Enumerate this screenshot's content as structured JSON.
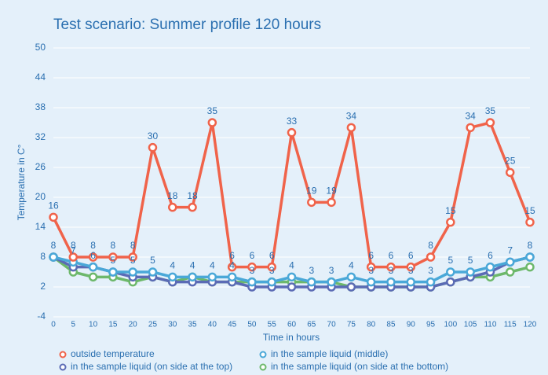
{
  "chart_data": {
    "type": "line",
    "title": "Test scenario: Summer profile 120 hours",
    "xlabel": "Time in hours",
    "ylabel": "Temperature in C°",
    "x": [
      0,
      5,
      10,
      15,
      20,
      25,
      30,
      35,
      40,
      45,
      50,
      55,
      60,
      65,
      70,
      75,
      80,
      85,
      90,
      95,
      100,
      105,
      110,
      115,
      120
    ],
    "series": [
      {
        "name": "outside temperature",
        "color": "#f0634a",
        "values": [
          16,
          8,
          8,
          8,
          8,
          30,
          18,
          18,
          35,
          6,
          6,
          6,
          33,
          19,
          19,
          34,
          6,
          6,
          6,
          8,
          15,
          34,
          35,
          25,
          15
        ]
      },
      {
        "name": "in the sample liquid (middle)",
        "color": "#4aa8d8",
        "values": [
          8,
          7,
          6,
          5,
          5,
          5,
          4,
          4,
          4,
          4,
          3,
          3,
          4,
          3,
          3,
          4,
          3,
          3,
          3,
          3,
          5,
          5,
          6,
          7,
          8
        ]
      },
      {
        "name": "in the sample liquid (on side at the top)",
        "color": "#5b6bb5",
        "values": [
          8,
          6,
          6,
          5,
          4,
          4,
          3,
          3,
          3,
          3,
          2,
          2,
          2,
          2,
          2,
          2,
          2,
          2,
          2,
          2,
          3,
          4,
          5,
          7,
          8
        ]
      },
      {
        "name": "in the sample liquid (on side at the bottom)",
        "color": "#6db86b",
        "values": [
          8,
          5,
          4,
          4,
          3,
          4,
          3,
          4,
          3,
          3,
          3,
          3,
          3,
          3,
          3,
          2,
          2,
          2,
          2,
          2,
          3,
          4,
          4,
          5,
          6
        ]
      }
    ],
    "xlim": [
      0,
      120
    ],
    "xticks": [
      0,
      5,
      10,
      15,
      20,
      25,
      30,
      35,
      40,
      45,
      50,
      55,
      60,
      65,
      70,
      75,
      80,
      85,
      90,
      95,
      100,
      105,
      110,
      115,
      120
    ],
    "ylim": [
      -4,
      50
    ],
    "yticks": [
      -4,
      2,
      8,
      14,
      20,
      26,
      32,
      38,
      44,
      50
    ],
    "grid": true
  }
}
